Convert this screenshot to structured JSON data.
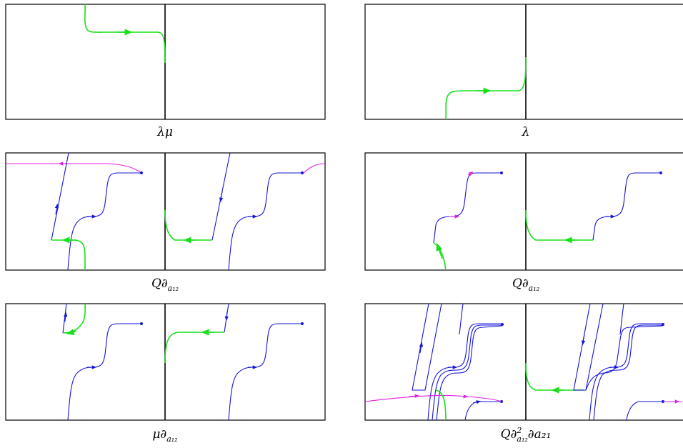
{
  "panels": [
    {
      "id": "p1",
      "caption": {
        "base": "λμ",
        "sub": "",
        "sup": "",
        "sub2": ""
      }
    },
    {
      "id": "p2",
      "caption": {
        "base": "λ",
        "sub": "",
        "sup": "",
        "sub2": ""
      }
    },
    {
      "id": "p3",
      "caption": {
        "base": "Q∂",
        "sub": "a₁₂",
        "sup": "",
        "sub2": ""
      }
    },
    {
      "id": "p4",
      "caption": {
        "base": "Q∂",
        "sub": "a₁₂",
        "sup": "",
        "sub2": ""
      }
    },
    {
      "id": "p5",
      "caption": {
        "base": "μ∂",
        "sub": "a₁₂",
        "sup": "",
        "sub2": ""
      }
    },
    {
      "id": "p6",
      "caption": {
        "base": "Q∂",
        "sub": "a₁₂",
        "sup": "2",
        "sub2": "∂a₂₁"
      }
    }
  ],
  "colors": {
    "flow_blue": "#1515d8",
    "flow_green": "#18e018",
    "flow_magenta": "#e020e0",
    "frame": "#000000"
  }
}
